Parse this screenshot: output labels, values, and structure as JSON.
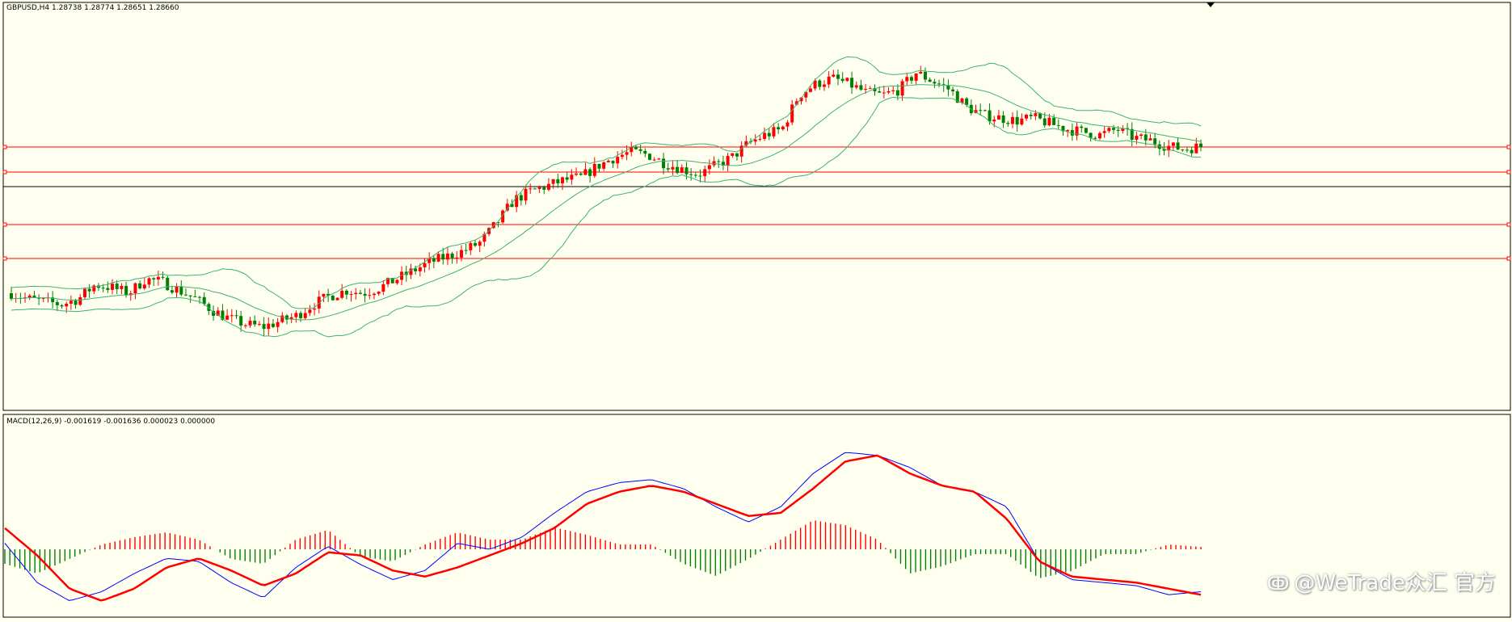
{
  "window": {
    "title": "GBPUSD,H4  1.28738 1.28774 1.28651 1.28660",
    "macd_label": "MACD(12,26,9) -0.001619 -0.001636 0.000023 0.000000",
    "watermark": "@WeTrade众汇 官方",
    "watermark_icon": "weibo-like-icon"
  },
  "colors": {
    "background": "#fffff0",
    "bull_candle": "#ff0000",
    "bear_candle": "#008000",
    "bands": "#3cb371",
    "level_lines": "#ff0000",
    "price_line": "#000000",
    "macd_line": "#0000ff",
    "signal_line": "#ff0000",
    "hist_pos": "#ff0000",
    "hist_neg": "#008000"
  },
  "chart_data": [
    {
      "type": "candlestick",
      "symbol": "GBPUSD",
      "timeframe": "H4",
      "ohlc_shown": [
        1.28738,
        1.28774,
        1.28651,
        1.2866
      ],
      "close_path": [
        0.22,
        0.2,
        0.19,
        0.18,
        0.2,
        0.25,
        0.24,
        0.22,
        0.27,
        0.26,
        0.23,
        0.2,
        0.16,
        0.13,
        0.11,
        0.1,
        0.12,
        0.14,
        0.18,
        0.21,
        0.23,
        0.22,
        0.24,
        0.27,
        0.3,
        0.33,
        0.35,
        0.37,
        0.4,
        0.47,
        0.55,
        0.58,
        0.6,
        0.62,
        0.63,
        0.67,
        0.7,
        0.72,
        0.71,
        0.68,
        0.66,
        0.64,
        0.67,
        0.7,
        0.75,
        0.78,
        0.8,
        0.92,
        0.96,
        0.98,
        0.96,
        0.93,
        0.92,
        0.94,
        1.0,
        0.97,
        0.94,
        0.88,
        0.85,
        0.84,
        0.83,
        0.84,
        0.82,
        0.8,
        0.79,
        0.78,
        0.8,
        0.77,
        0.76,
        0.74,
        0.73,
        0.74
      ],
      "hlines": [
        "level-1",
        "level-2",
        "current-price",
        "level-3",
        "level-4"
      ]
    },
    {
      "type": "line",
      "name": "MACD(12,26,9)",
      "values_shown": [
        -0.001619,
        -0.001636,
        2.3e-05,
        0.0
      ],
      "macd": [
        0.1,
        -0.55,
        -0.85,
        -0.7,
        -0.4,
        -0.15,
        -0.2,
        -0.55,
        -0.8,
        -0.3,
        0.05,
        -0.25,
        -0.5,
        -0.35,
        0.1,
        0.0,
        0.2,
        0.6,
        0.95,
        1.1,
        1.15,
        1.0,
        0.7,
        0.45,
        0.7,
        1.25,
        1.6,
        1.55,
        1.35,
        1.05,
        0.95,
        0.7,
        -0.2,
        -0.5,
        -0.55,
        -0.6,
        -0.75,
        -0.7
      ],
      "signal": [
        0.35,
        -0.1,
        -0.65,
        -0.85,
        -0.65,
        -0.3,
        -0.15,
        -0.35,
        -0.6,
        -0.4,
        -0.05,
        -0.1,
        -0.35,
        -0.45,
        -0.3,
        -0.1,
        0.1,
        0.35,
        0.75,
        0.95,
        1.05,
        0.95,
        0.75,
        0.55,
        0.6,
        1.0,
        1.45,
        1.55,
        1.25,
        1.05,
        0.95,
        0.5,
        -0.2,
        -0.45,
        -0.5,
        -0.55,
        -0.65,
        -0.75
      ],
      "histogram": [
        -0.3,
        -0.5,
        -0.2,
        0.1,
        0.25,
        0.35,
        0.2,
        -0.2,
        -0.3,
        0.2,
        0.4,
        -0.15,
        -0.25,
        0.1,
        0.35,
        0.2,
        0.2,
        0.45,
        0.3,
        0.1,
        0.1,
        -0.3,
        -0.55,
        -0.2,
        0.2,
        0.6,
        0.5,
        0.2,
        -0.5,
        -0.35,
        -0.1,
        -0.1,
        -0.6,
        -0.45,
        -0.1,
        -0.1,
        0.1,
        0.05
      ]
    }
  ]
}
